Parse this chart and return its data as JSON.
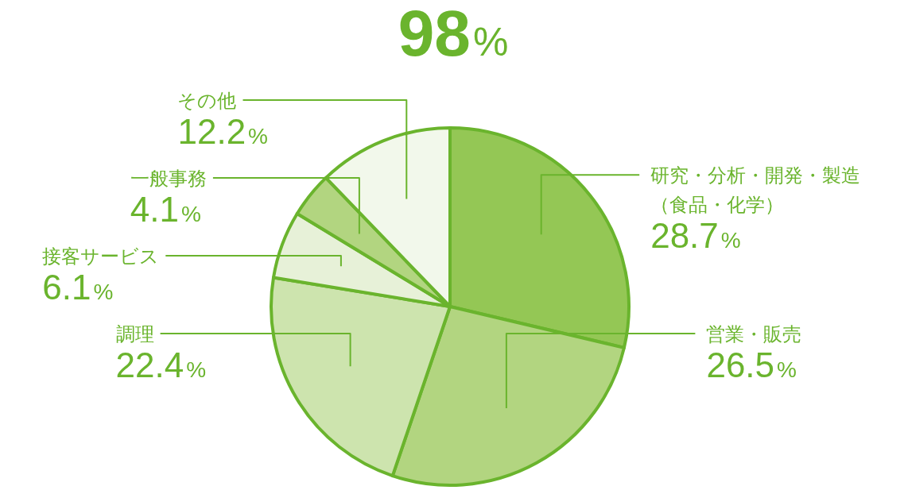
{
  "chart_data": {
    "type": "pie",
    "title": "98%",
    "categories": [
      "研究・分析・開発・製造（食品・化学）",
      "営業・販売",
      "調理",
      "接客サービス",
      "一般事務",
      "その他"
    ],
    "values": [
      28.7,
      26.5,
      22.4,
      6.1,
      4.1,
      12.2
    ],
    "value_labels": [
      "28.7%",
      "26.5%",
      "22.4%",
      "6.1%",
      "4.1%",
      "12.2%"
    ],
    "colors": [
      "#94c755",
      "#b2d580",
      "#cde4ae",
      "#e7f1d8",
      "#b2d580",
      "#f2f8eb"
    ]
  }
}
